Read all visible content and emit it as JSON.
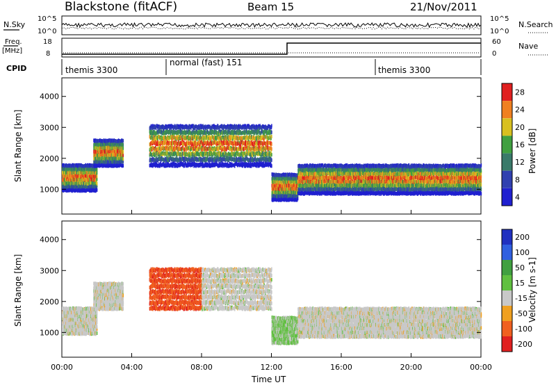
{
  "header": {
    "station": "Blackstone (fitACF)",
    "beam": "Beam 15",
    "date": "21/Nov/2011"
  },
  "nsky_panel": {
    "left_label": "N.Sky",
    "tick_top": "10^5",
    "tick_bottom": "10^0",
    "right_label": "N.Search",
    "right_tick_top": "10^5",
    "right_tick_bottom": "10^0"
  },
  "freq_panel": {
    "left_label_1": "Freq.",
    "left_label_2": "[MHz]",
    "tick_top": "18",
    "tick_bottom": "8",
    "right_label": "Nave",
    "right_tick_top": "60",
    "right_tick_bottom": "0"
  },
  "cpid": {
    "label": "CPID",
    "segments": [
      {
        "name": "themis 3300",
        "start_hour": 0
      },
      {
        "name": "normal (fast) 151",
        "start_hour": 6
      },
      {
        "name": "themis 3300",
        "start_hour": 18
      }
    ]
  },
  "chart_data": [
    {
      "type": "heatmap",
      "panel": "power",
      "ylabel": "Slant Range [km]",
      "yticks": [
        1000,
        2000,
        3000,
        4000
      ],
      "ylim": [
        200,
        4600
      ],
      "colorbar": {
        "label": "Power [dB]",
        "ticks": [
          "4",
          "8",
          "12",
          "16",
          "20",
          "24",
          "28"
        ],
        "colors": [
          "#2020d0",
          "#3040b0",
          "#3a7a6a",
          "#40a040",
          "#d8c020",
          "#f08020",
          "#e02020"
        ]
      },
      "bands": [
        {
          "hours": [
            0.0,
            2.0
          ],
          "range_km": [
            1000,
            1900
          ]
        },
        {
          "hours": [
            1.8,
            3.5
          ],
          "range_km": [
            1800,
            2700
          ]
        },
        {
          "hours": [
            5.0,
            12.0
          ],
          "range_km": [
            1800,
            3200
          ]
        },
        {
          "hours": [
            12.0,
            13.5
          ],
          "range_km": [
            700,
            1600
          ]
        },
        {
          "hours": [
            13.5,
            24.0
          ],
          "range_km": [
            900,
            1900
          ]
        }
      ]
    },
    {
      "type": "heatmap",
      "panel": "velocity",
      "ylabel": "Slant Range [km]",
      "yticks": [
        1000,
        2000,
        3000,
        4000
      ],
      "ylim": [
        200,
        4600
      ],
      "colorbar": {
        "label": "Velocity [m s-1]",
        "ticks": [
          "200",
          "100",
          "50",
          "15",
          "-15",
          "-50",
          "-100",
          "-200"
        ],
        "colors": [
          "#2030c0",
          "#3060e0",
          "#40a040",
          "#60c040",
          "#c8c8c8",
          "#f0a020",
          "#f06020",
          "#e02020"
        ]
      },
      "xlabel": "Time UT",
      "xticks": [
        "00:00",
        "04:00",
        "08:00",
        "12:00",
        "16:00",
        "20:00",
        "00:00"
      ],
      "xlim_hours": [
        0,
        24
      ]
    }
  ]
}
